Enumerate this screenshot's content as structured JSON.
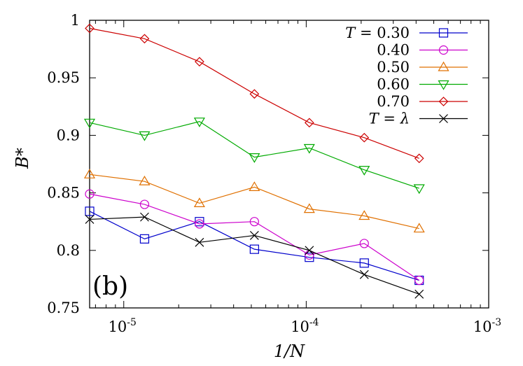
{
  "chart_data": {
    "type": "line",
    "xscale": "log",
    "xlim": [
      6.5e-06,
      0.001
    ],
    "ylim": [
      0.75,
      1.0
    ],
    "xlabel": "1/N",
    "ylabel": "B*",
    "panel_label": "(b)",
    "x_ticks": [
      {
        "value": 1e-05,
        "base": "10",
        "exp": "-5"
      },
      {
        "value": 0.0001,
        "base": "10",
        "exp": "-4"
      },
      {
        "value": 0.001,
        "base": "10",
        "exp": "-3"
      }
    ],
    "y_ticks": [
      {
        "value": 0.75,
        "label": "0.75"
      },
      {
        "value": 0.8,
        "label": "0.8"
      },
      {
        "value": 0.85,
        "label": "0.85"
      },
      {
        "value": 0.9,
        "label": "0.9"
      },
      {
        "value": 0.95,
        "label": "0.95"
      },
      {
        "value": 1.0,
        "label": "1"
      }
    ],
    "legend_position": "top-right",
    "x": [
      6.5e-06,
      1.3e-05,
      2.6e-05,
      5.2e-05,
      0.000104,
      0.000208,
      0.000416
    ],
    "series": [
      {
        "name": "T = 0.30",
        "color": "#0000cc",
        "marker": "square",
        "values": [
          0.834,
          0.81,
          0.825,
          0.801,
          0.794,
          0.789,
          0.774
        ]
      },
      {
        "name": "0.40",
        "color": "#cc00cc",
        "marker": "circle",
        "values": [
          0.849,
          0.84,
          0.823,
          0.825,
          0.796,
          0.806,
          0.774
        ]
      },
      {
        "name": "0.50",
        "color": "#e07000",
        "marker": "triangle-up",
        "values": [
          0.866,
          0.86,
          0.841,
          0.855,
          0.836,
          0.83,
          0.819
        ]
      },
      {
        "name": "0.60",
        "color": "#00aa00",
        "marker": "triangle-down",
        "values": [
          0.911,
          0.9,
          0.912,
          0.881,
          0.889,
          0.87,
          0.854
        ]
      },
      {
        "name": "0.70",
        "color": "#cc0000",
        "marker": "diamond",
        "values": [
          0.993,
          0.984,
          0.964,
          0.936,
          0.911,
          0.898,
          0.88
        ]
      },
      {
        "name": "T = λ",
        "color": "#000000",
        "marker": "cross",
        "values": [
          0.827,
          0.829,
          0.807,
          0.813,
          0.8,
          0.779,
          0.762
        ]
      }
    ]
  }
}
